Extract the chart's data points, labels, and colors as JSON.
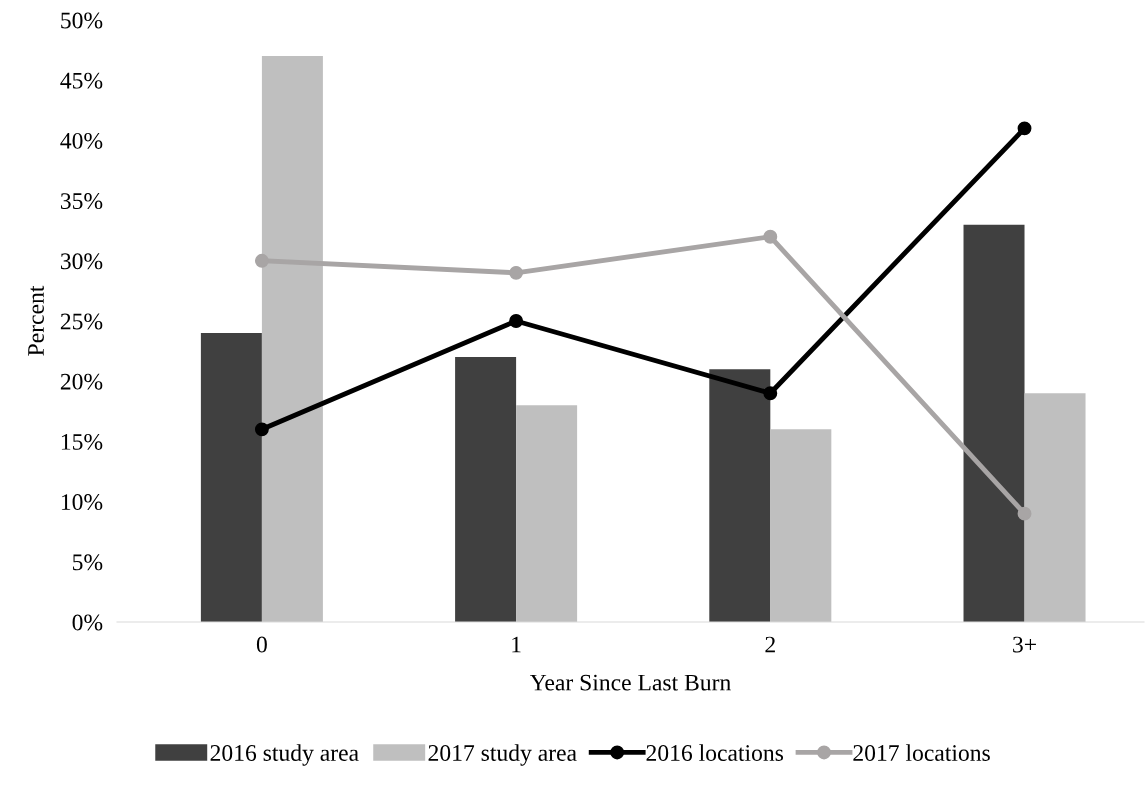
{
  "chart_data": {
    "type": "bar",
    "xlabel": "Year Since Last Burn",
    "ylabel": "Percent",
    "categories": [
      "0",
      "1",
      "2",
      "3+"
    ],
    "series": [
      {
        "name": "2016 study area",
        "color": "#404040",
        "values": [
          24,
          22,
          21,
          33
        ]
      },
      {
        "name": "2017 study area",
        "color": "#bfbfbf",
        "values": [
          47,
          18,
          16,
          19
        ]
      },
      {
        "name": "2016 locations",
        "type": "line",
        "color": "#000000",
        "values": [
          16,
          25,
          19,
          41
        ]
      },
      {
        "name": "2017 locations",
        "type": "line",
        "color": "#a8a5a5",
        "values": [
          30,
          29,
          32,
          9
        ]
      }
    ],
    "ylim": [
      0,
      50
    ],
    "yticks": [
      {
        "value": 0,
        "label": "0%"
      },
      {
        "value": 5,
        "label": "5%"
      },
      {
        "value": 10,
        "label": "10%"
      },
      {
        "value": 15,
        "label": "15%"
      },
      {
        "value": 20,
        "label": "20%"
      },
      {
        "value": 25,
        "label": "25%"
      },
      {
        "value": 30,
        "label": "30%"
      },
      {
        "value": 35,
        "label": "35%"
      },
      {
        "value": 40,
        "label": "40%"
      },
      {
        "value": 45,
        "label": "45%"
      },
      {
        "value": 50,
        "label": "50%"
      }
    ],
    "grid": false,
    "legend": "bottom",
    "marker": "circle",
    "line_style": "solid"
  }
}
